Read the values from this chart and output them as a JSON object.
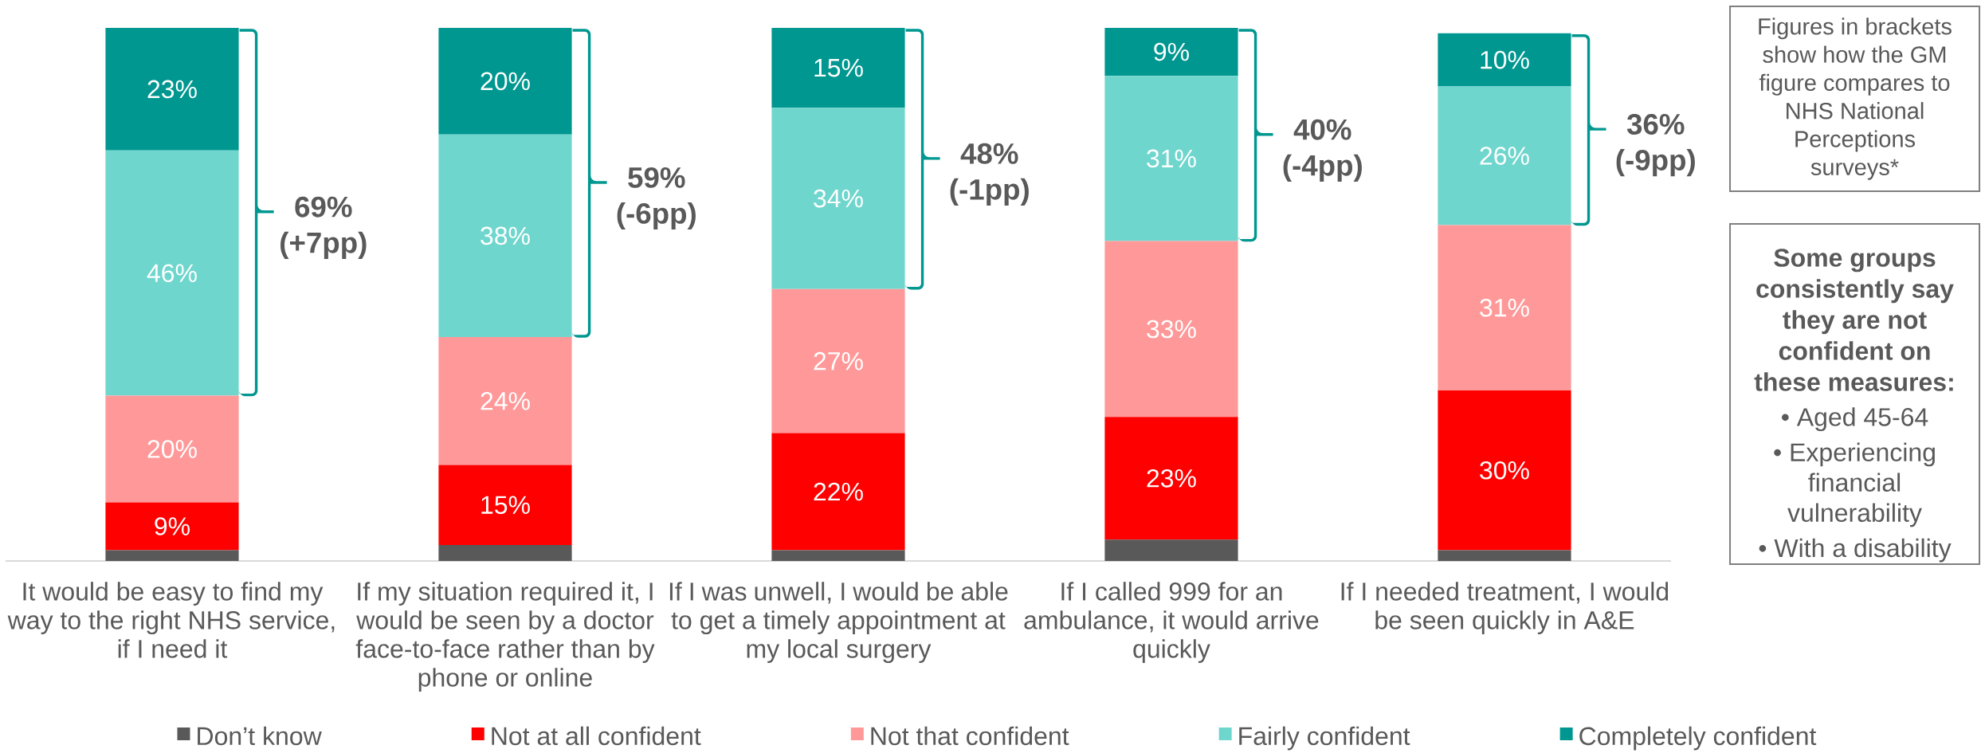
{
  "chart_data": {
    "type": "bar",
    "stacked": true,
    "categories": [
      "It would be easy to find my way to the right NHS service, if I need it",
      "If my situation required it, I would be seen by a doctor face-to-face rather than by phone or online",
      "If I was unwell, I would be able to get a timely appointment at my local surgery",
      "If I called 999 for an ambulance, it would arrive quickly",
      "If I needed treatment, I would be seen quickly in A&E"
    ],
    "series": [
      {
        "name": "Don’t know",
        "color": "#595959",
        "values": [
          2,
          3,
          2,
          4,
          2
        ]
      },
      {
        "name": "Not at all confident",
        "color": "#ff0000",
        "values": [
          9,
          15,
          22,
          23,
          30
        ],
        "value_labels": [
          "9%",
          "15%",
          "22%",
          "23%",
          "30%"
        ]
      },
      {
        "name": "Not that confident",
        "color": "#ff9999",
        "values": [
          20,
          24,
          27,
          33,
          31
        ],
        "value_labels": [
          "20%",
          "24%",
          "27%",
          "33%",
          "31%"
        ]
      },
      {
        "name": "Fairly confident",
        "color": "#6fd6cd",
        "values": [
          46,
          38,
          34,
          31,
          26
        ],
        "value_labels": [
          "46%",
          "38%",
          "34%",
          "31%",
          "26%"
        ]
      },
      {
        "name": "Completely confident",
        "color": "#009790",
        "values": [
          23,
          20,
          15,
          9,
          10
        ],
        "value_labels": [
          "23%",
          "20%",
          "15%",
          "9%",
          "10%"
        ]
      }
    ],
    "ylim": [
      0,
      100
    ],
    "tick_labels": "x",
    "legend": "bottom",
    "annotations": [
      "69% (+7pp)",
      "59% (-6pp)",
      "48% (-1pp)",
      "40% (-4pp)",
      "36% (-9pp)",
      "Figures in brackets show how the GM figure compares to NHS National Perceptions surveys*",
      "Some groups consistently say they are not confident on these measures:",
      "• Aged 45-64",
      "• Experiencing financial vulnerability",
      "• With a disability"
    ]
  }
}
